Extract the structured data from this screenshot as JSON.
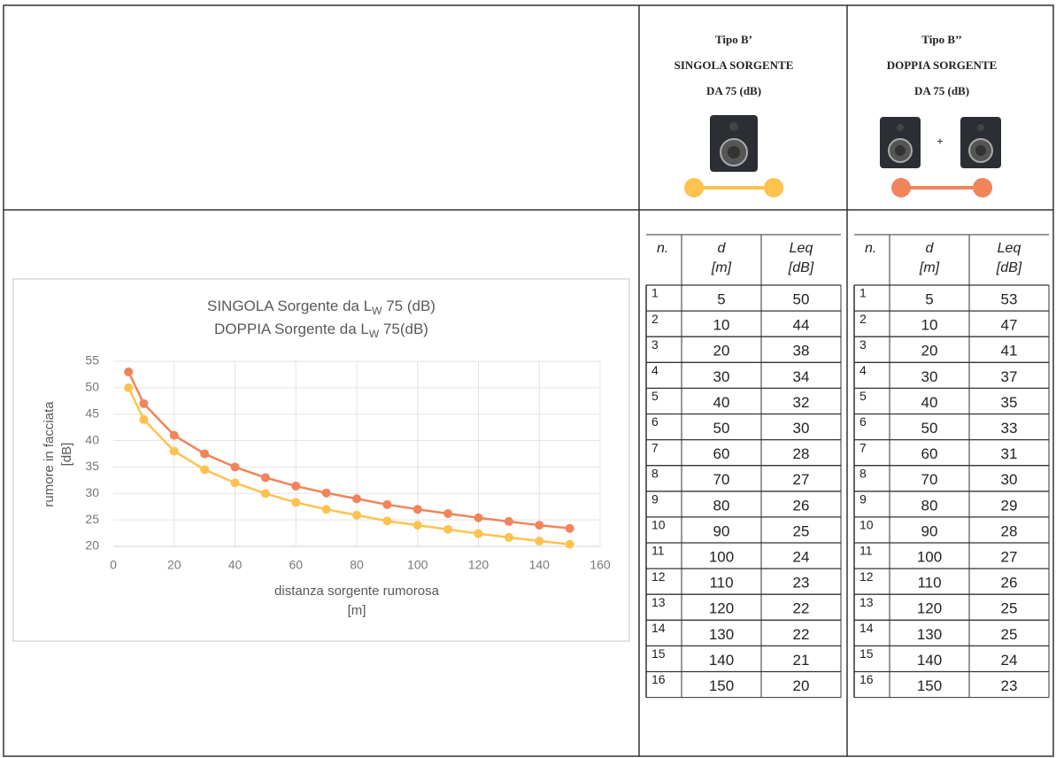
{
  "header": {
    "col2": [
      "Tipo B’",
      "SINGOLA SORGENTE",
      "DA 75 (dB)"
    ],
    "col3": [
      "Tipo B’’",
      "DOPPIA SORGENTE",
      "DA 75 (dB)"
    ],
    "plus": "+"
  },
  "chart_data": {
    "type": "line",
    "title": [
      {
        "before": "SINGOLA Sorgente da L",
        "sub": "W",
        "after": " 75 (dB)"
      },
      {
        "before": "DOPPIA Sorgente da L",
        "sub": "W",
        "after": " 75(dB)"
      }
    ],
    "y_label": [
      "rumore in facciata",
      "[dB]"
    ],
    "x_label": [
      "distanza sorgente rumorosa",
      "[m]"
    ],
    "x": [
      5,
      10,
      20,
      30,
      40,
      50,
      60,
      70,
      80,
      90,
      100,
      110,
      120,
      130,
      140,
      150
    ],
    "series": [
      {
        "name": "SINGOLA",
        "color": "#ffc24f",
        "values": [
          50,
          44,
          38,
          34.5,
          32,
          30,
          28.3,
          27,
          25.9,
          24.8,
          24,
          23.2,
          22.4,
          21.7,
          21,
          20.4
        ]
      },
      {
        "name": "DOPPIA",
        "color": "#f0845a",
        "values": [
          53,
          47,
          41,
          37.5,
          35,
          33,
          31.4,
          30.1,
          29,
          27.9,
          27,
          26.2,
          25.4,
          24.7,
          24,
          23.4
        ]
      }
    ],
    "xlim": [
      0,
      160
    ],
    "xticks": [
      0,
      20,
      40,
      60,
      80,
      100,
      120,
      140,
      160
    ],
    "ylim": [
      20,
      55
    ],
    "yticks": [
      20,
      25,
      30,
      35,
      40,
      45,
      50,
      55
    ],
    "grid": true
  },
  "tables": [
    {
      "header": [
        [
          "n."
        ],
        [
          "d",
          "[m]"
        ],
        [
          "Leq",
          "[dB]"
        ]
      ],
      "rows": [
        [
          1,
          5,
          50
        ],
        [
          2,
          10,
          44
        ],
        [
          3,
          20,
          38
        ],
        [
          4,
          30,
          34
        ],
        [
          5,
          40,
          32
        ],
        [
          6,
          50,
          30
        ],
        [
          7,
          60,
          28
        ],
        [
          8,
          70,
          27
        ],
        [
          9,
          80,
          26
        ],
        [
          10,
          90,
          25
        ],
        [
          11,
          100,
          24
        ],
        [
          12,
          110,
          23
        ],
        [
          13,
          120,
          22
        ],
        [
          14,
          130,
          22
        ],
        [
          15,
          140,
          21
        ],
        [
          16,
          150,
          20
        ]
      ]
    },
    {
      "header": [
        [
          "n."
        ],
        [
          "d",
          "[m]"
        ],
        [
          "Leq",
          "[dB]"
        ]
      ],
      "rows": [
        [
          1,
          5,
          53
        ],
        [
          2,
          10,
          47
        ],
        [
          3,
          20,
          41
        ],
        [
          4,
          30,
          37
        ],
        [
          5,
          40,
          35
        ],
        [
          6,
          50,
          33
        ],
        [
          7,
          60,
          31
        ],
        [
          8,
          70,
          30
        ],
        [
          9,
          80,
          29
        ],
        [
          10,
          90,
          28
        ],
        [
          11,
          100,
          27
        ],
        [
          12,
          110,
          26
        ],
        [
          13,
          120,
          25
        ],
        [
          14,
          130,
          25
        ],
        [
          15,
          140,
          24
        ],
        [
          16,
          150,
          23
        ]
      ]
    }
  ]
}
